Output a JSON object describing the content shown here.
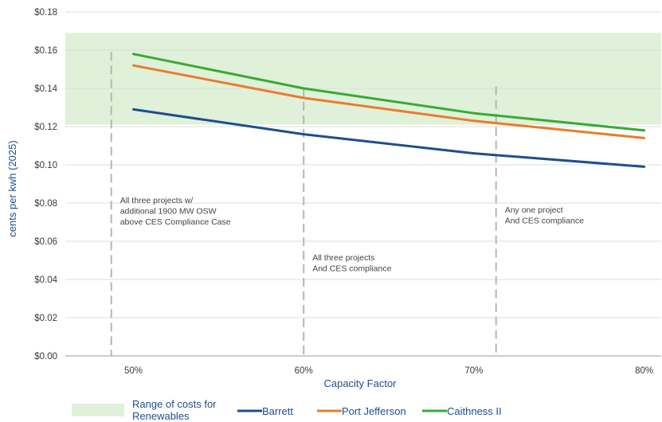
{
  "chart_data": {
    "type": "line",
    "xlabel": "Capacity Factor",
    "ylabel": "cents per kwh (2025)",
    "x": [
      0.5,
      0.6,
      0.7,
      0.8
    ],
    "x_tick_labels": [
      "50%",
      "60%",
      "70%",
      "80%"
    ],
    "xlim": [
      0.46,
      0.81
    ],
    "ylim": [
      0,
      0.18
    ],
    "y_tick_values": [
      0,
      0.02,
      0.04,
      0.06,
      0.08,
      0.1,
      0.12,
      0.14,
      0.16,
      0.18
    ],
    "y_tick_labels": [
      "$0.00",
      "$0.02",
      "$0.04",
      "$0.06",
      "$0.08",
      "$0.10",
      "$0.12",
      "$0.14",
      "$0.16",
      "$0.18"
    ],
    "grid": "horizontal",
    "range_band": {
      "label": "Range of costs for Renewables",
      "y0": 0.121,
      "y1": 0.169,
      "color": "#dff1d8"
    },
    "series": [
      {
        "name": "Barrett",
        "values": [
          0.129,
          0.116,
          0.106,
          0.099
        ],
        "color": "#1f4e8c"
      },
      {
        "name": "Port Jefferson",
        "values": [
          0.152,
          0.135,
          0.123,
          0.114
        ],
        "color": "#e87d2b"
      },
      {
        "name": "Caithness II",
        "values": [
          0.158,
          0.14,
          0.127,
          0.118
        ],
        "color": "#3aa935"
      }
    ],
    "reference_lines": [
      {
        "x": 0.487,
        "y_top": 0.159,
        "label": [
          "All three projects w/",
          "additional 1900 MW OSW",
          "above CES Compliance Case"
        ],
        "label_y": 0.08
      },
      {
        "x": 0.6,
        "y_top": 0.14,
        "label": [
          "All three projects",
          "And CES compliance"
        ],
        "label_y": 0.05
      },
      {
        "x": 0.713,
        "y_top": 0.141,
        "label": [
          "Any one project",
          "And CES compliance"
        ],
        "label_y": 0.075
      }
    ],
    "legend_position": "bottom"
  }
}
